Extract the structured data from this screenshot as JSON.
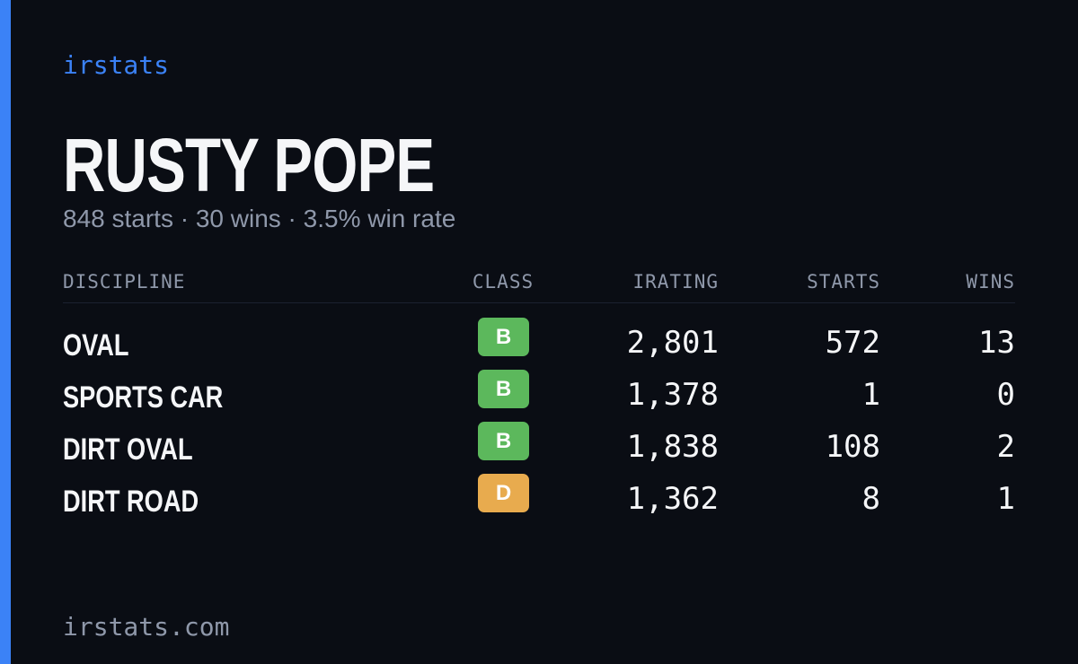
{
  "brand": "irstats",
  "driver": {
    "name": "RUSTY POPE",
    "summary": "848 starts · 30 wins · 3.5% win rate"
  },
  "table": {
    "headers": [
      "DISCIPLINE",
      "CLASS",
      "IRATING",
      "STARTS",
      "WINS"
    ],
    "rows": [
      {
        "discipline": "OVAL",
        "class": "B",
        "class_color": "#5cb85c",
        "irating": "2,801",
        "starts": "572",
        "wins": "13"
      },
      {
        "discipline": "SPORTS CAR",
        "class": "B",
        "class_color": "#5cb85c",
        "irating": "1,378",
        "starts": "1",
        "wins": "0"
      },
      {
        "discipline": "DIRT OVAL",
        "class": "B",
        "class_color": "#5cb85c",
        "irating": "1,838",
        "starts": "108",
        "wins": "2"
      },
      {
        "discipline": "DIRT ROAD",
        "class": "D",
        "class_color": "#e8ab4e",
        "irating": "1,362",
        "starts": "8",
        "wins": "1"
      }
    ]
  },
  "footer": "irstats.com"
}
